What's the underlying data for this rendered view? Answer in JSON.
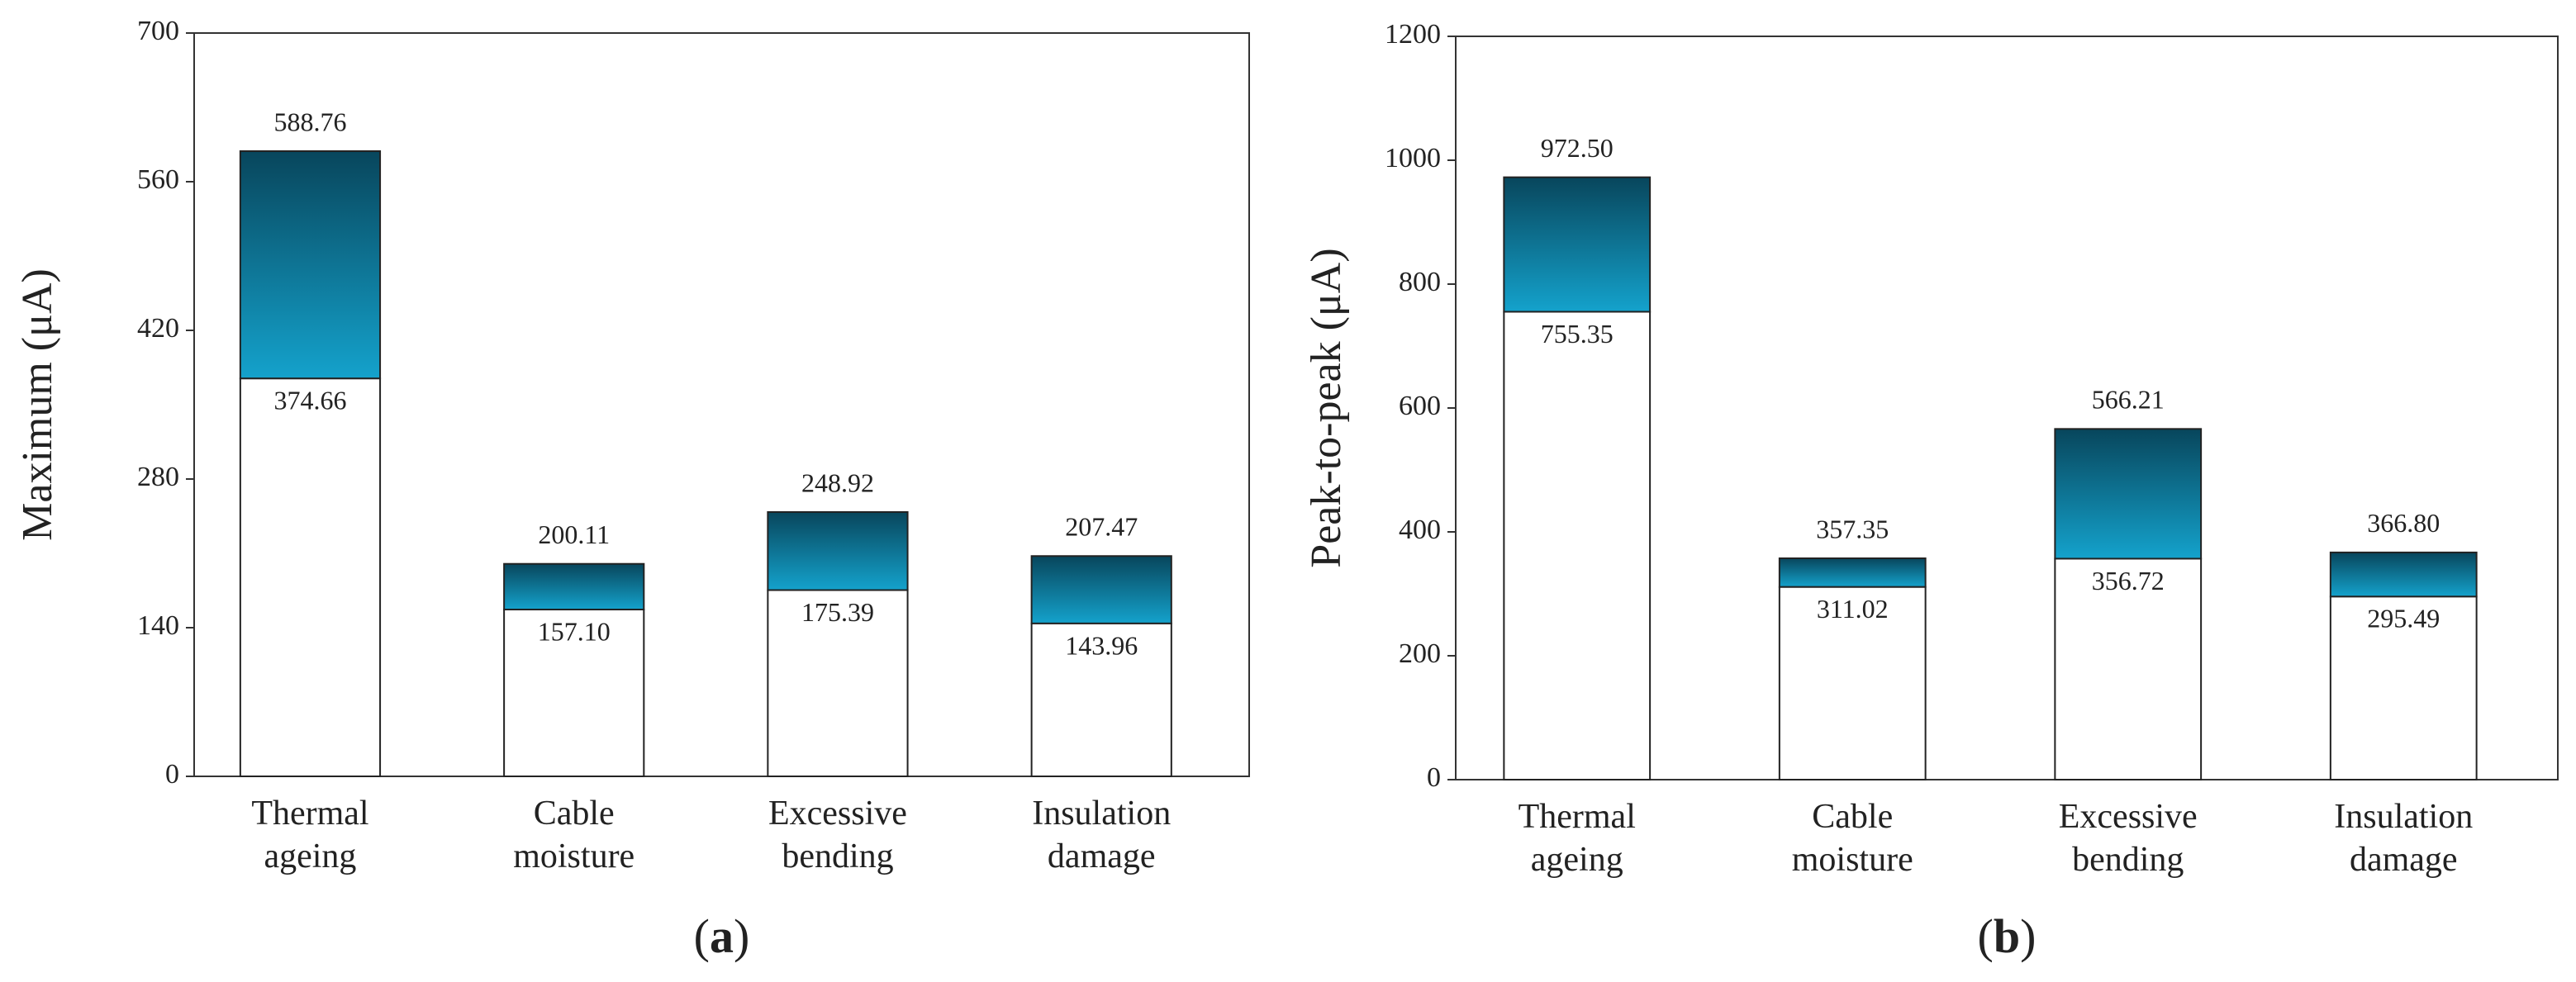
{
  "chart_data": [
    {
      "type": "overlay-bar",
      "panel_label": "(a)",
      "y_label": "Maximum (μA)",
      "categories": [
        "Thermal ageing",
        "Cable moisture",
        "Excessive bending",
        "Insulation damage"
      ],
      "series": [
        {
          "color": "#ffffff",
          "values": [
            374.66,
            157.1,
            175.39,
            143.96
          ],
          "value_labels": [
            "374.66",
            "157.10",
            "175.39",
            "143.96"
          ]
        },
        {
          "color": "#0c6f8f",
          "values": [
            588.76,
            200.11,
            248.92,
            207.47
          ],
          "value_labels": [
            "588.76",
            "200.11",
            "248.92",
            "207.47"
          ]
        }
      ],
      "ylim": [
        0,
        700
      ],
      "yticks": [
        0,
        140,
        280,
        420,
        560,
        700
      ]
    },
    {
      "type": "overlay-bar",
      "panel_label": "(b)",
      "y_label": "Peak-to-peak (μA)",
      "categories": [
        "Thermal ageing",
        "Cable moisture",
        "Excessive bending",
        "Insulation damage"
      ],
      "series": [
        {
          "color": "#ffffff",
          "values": [
            755.35,
            311.02,
            356.72,
            295.49
          ],
          "value_labels": [
            "755.35",
            "311.02",
            "356.72",
            "295.49"
          ]
        },
        {
          "color": "#0c6f8f",
          "values": [
            972.5,
            357.35,
            566.21,
            366.8
          ],
          "value_labels": [
            "972.50",
            "357.35",
            "566.21",
            "366.80"
          ]
        }
      ],
      "ylim": [
        0,
        1200
      ],
      "yticks": [
        0,
        200,
        400,
        600,
        800,
        1000,
        1200
      ]
    }
  ]
}
